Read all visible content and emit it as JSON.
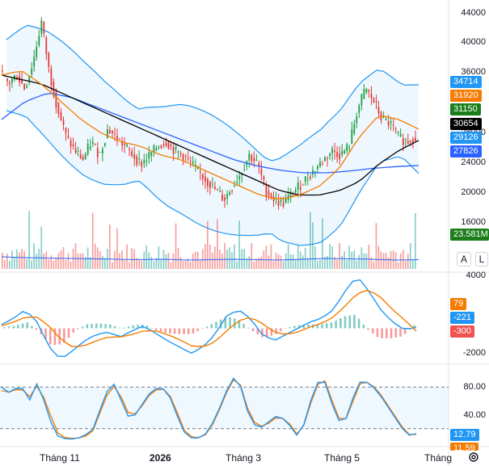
{
  "price_axis": [
    "44000",
    "40000",
    "36000",
    "28000",
    "24000",
    "20000",
    "16000"
  ],
  "macd_axis": [
    "4000",
    "-2000"
  ],
  "stoch_axis": [
    "80.00",
    "40.00"
  ],
  "price_badges": [
    {
      "label": "34714",
      "color": "#2196f3"
    },
    {
      "label": "31920",
      "color": "#f57c00"
    },
    {
      "label": "31150",
      "color": "#1b7e1b"
    },
    {
      "label": "30654",
      "color": "#000000"
    },
    {
      "label": "29126",
      "color": "#2196f3"
    },
    {
      "label": "27826",
      "color": "#2962ff"
    }
  ],
  "volume_badge": {
    "label": "23.581M",
    "color": "#1b7e1b"
  },
  "macd_badges": [
    {
      "label": "79",
      "color": "#f57c00"
    },
    {
      "label": "-221",
      "color": "#2196f3"
    },
    {
      "label": "-300",
      "color": "#ef5350"
    }
  ],
  "stoch_badges": [
    {
      "label": "12.79",
      "color": "#2196f3"
    },
    {
      "label": "11.59",
      "color": "#f57c00"
    }
  ],
  "x_labels": [
    "Tháng 11",
    "2026",
    "Tháng 3",
    "Tháng 5",
    "Tháng"
  ],
  "buttons": {
    "auto": "A",
    "log": "L"
  },
  "colors": {
    "up": "#26a69a",
    "down": "#ef5350",
    "ma_black": "#000000",
    "ma_orange": "#f57c00",
    "ma_blue": "#2962ff",
    "bb": "#2196f3",
    "bb_fill": "#2196f3"
  },
  "chart_data": {
    "type": "candlestick",
    "price_range": [
      16000,
      46000
    ],
    "close_path": [
      38500,
      37000,
      38000,
      36500,
      39500,
      44000,
      38000,
      34000,
      31000,
      29500,
      28500,
      30500,
      29000,
      32000,
      31000,
      30000,
      29000,
      28000,
      29000,
      30000,
      30500,
      29500,
      29000,
      28000,
      27000,
      26000,
      25000,
      24000,
      25500,
      27000,
      29000,
      28000,
      25000,
      24000,
      23500,
      24500,
      25500,
      26500,
      27500,
      28500,
      29500,
      29000,
      30000,
      34000,
      36500,
      35000,
      33000,
      32500,
      31000,
      30500,
      31150
    ],
    "ma_black": [
      38000,
      37500,
      37000,
      36000,
      35000,
      34000,
      33000,
      32000,
      31000,
      30000,
      29000,
      28000,
      27000,
      26000,
      25000,
      24500,
      24500,
      25000,
      26000,
      28000,
      29500,
      30654
    ],
    "ma_orange": [
      38000,
      38500,
      37000,
      35000,
      33000,
      31500,
      30500,
      30000,
      29000,
      28500,
      27500,
      26500,
      25500,
      24500,
      24000,
      24500,
      25500,
      27500,
      31000,
      33500,
      33000,
      31920
    ],
    "ma_blue": [
      33000,
      35000,
      36000,
      35500,
      34500,
      33500,
      32500,
      31500,
      30500,
      29500,
      28500,
      27800,
      27300,
      27000,
      27000,
      27200,
      27500,
      27700,
      27826
    ],
    "volume_last": "23.581M",
    "macd_last": 79,
    "signal_last": -221,
    "hist_last": -300,
    "stoch_k_last": 12.79,
    "stoch_d_last": 11.59
  }
}
